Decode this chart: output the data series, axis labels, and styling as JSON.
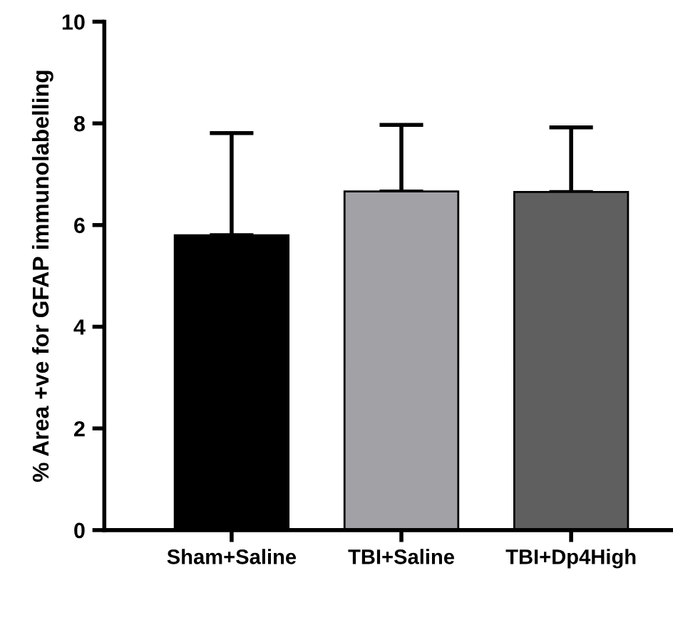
{
  "chart_data": {
    "type": "bar",
    "ylabel": "% Area +ve for GFAP immunolabelling",
    "categories": [
      "Sham+Saline",
      "TBI+Saline",
      "TBI+Dp4High"
    ],
    "values": [
      5.8,
      6.66,
      6.65
    ],
    "colors": [
      "#000000",
      "#a2a1a6",
      "#5f5f5f"
    ],
    "errors": [
      [
        5.8,
        7.81
      ],
      [
        6.66,
        7.97
      ],
      [
        6.65,
        7.92
      ]
    ],
    "ylim": [
      0,
      10
    ],
    "yticks": [
      0,
      2,
      4,
      6,
      8,
      10
    ],
    "grid": false,
    "legend": false
  }
}
